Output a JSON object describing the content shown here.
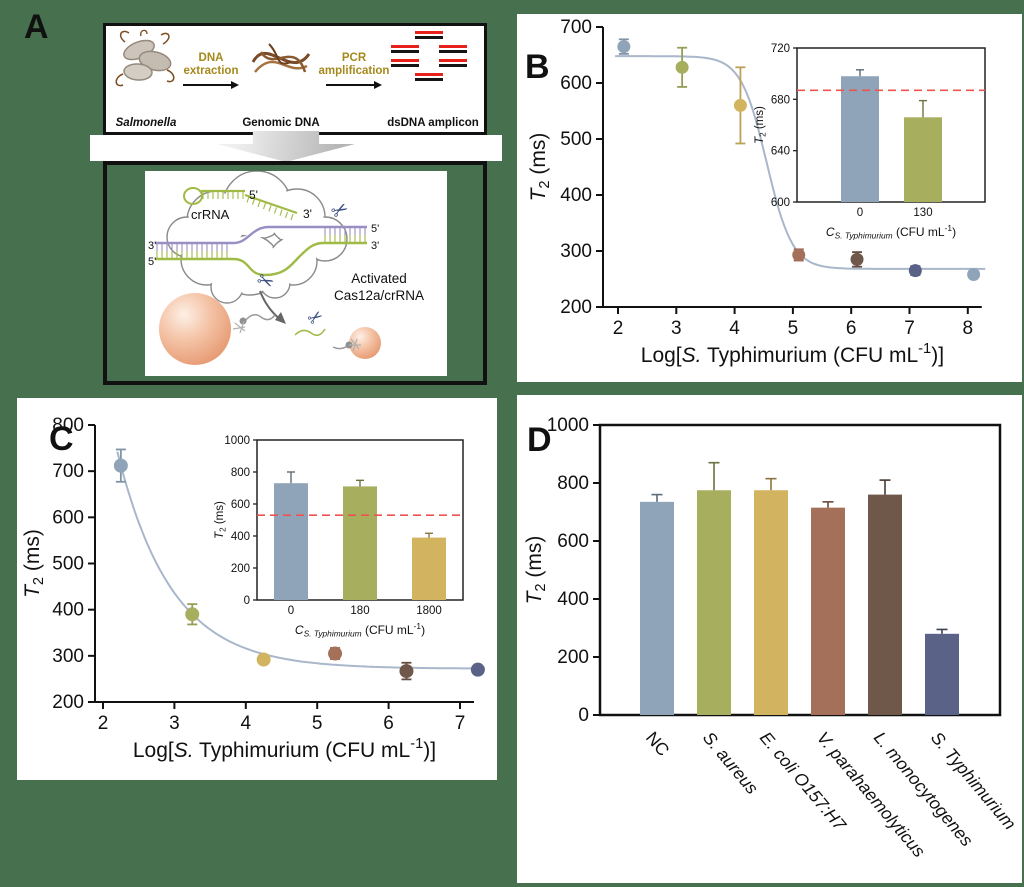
{
  "colors": {
    "canvas_green": "#47714e",
    "blue_gray": "#8fa4b8",
    "olive": "#a7ae5e",
    "gold": "#d2b35f",
    "brick": "#a4705a",
    "dark_brown": "#6f574a",
    "navy": "#5a6288",
    "curve": "#a9b7cb",
    "ref_red": "#ef5350"
  },
  "icons": {
    "scissors": "✂"
  },
  "panels": {
    "b": "B",
    "c": "C",
    "d": "D"
  },
  "panel_a": {
    "label": "A",
    "flow": {
      "item1_label": "Salmonella",
      "step1_line1": "DNA",
      "step1_line2": "extraction",
      "item2_label": "Genomic DNA",
      "step2_line1": "PCR",
      "step2_line2": "amplification",
      "item3_label": "dsDNA amplicon"
    },
    "mechanism": {
      "crRNA_label": "crRNA",
      "activated_line1": "Activated",
      "activated_line2": "Cas12a/crRNA",
      "ends": {
        "top5": "5'",
        "top3": "3'",
        "left3": "3'",
        "left5": "5'",
        "right5": "5'",
        "right3": "3'"
      }
    }
  },
  "chart_data": [
    {
      "id": "B",
      "type": "scatter",
      "panel_label": "B",
      "xlabel_parts": [
        [
          "Log[",
          ""
        ],
        [
          "S.",
          "i"
        ],
        [
          " Typhimurium (CFU mL",
          ""
        ],
        [
          "-1",
          "sup"
        ],
        [
          ")]",
          ""
        ]
      ],
      "ylabel_parts": [
        [
          "T",
          "i"
        ],
        [
          "2",
          "sub"
        ],
        [
          " (ms)",
          ""
        ]
      ],
      "xticks": [
        2,
        3,
        4,
        5,
        6,
        7,
        8
      ],
      "yticks": [
        200,
        300,
        400,
        500,
        600,
        700
      ],
      "ylim": [
        200,
        700
      ],
      "points": [
        {
          "x": 2.1,
          "y": 665,
          "err": 13,
          "color": "blue_gray"
        },
        {
          "x": 3.1,
          "y": 628,
          "err": 35,
          "color": "olive"
        },
        {
          "x": 4.1,
          "y": 560,
          "err": 68,
          "color": "gold"
        },
        {
          "x": 5.1,
          "y": 293,
          "err": 10,
          "color": "brick"
        },
        {
          "x": 6.1,
          "y": 285,
          "err": 13,
          "color": "dark_brown"
        },
        {
          "x": 7.1,
          "y": 265,
          "err": 8,
          "color": "navy"
        },
        {
          "x": 8.1,
          "y": 258,
          "err": 6,
          "color": "blue_gray"
        }
      ],
      "curve": {
        "kind": "sigmoid",
        "base": 268,
        "amp": 380,
        "x0": 4.55,
        "k": 0.22,
        "start": 1.95,
        "end": 8.3
      },
      "inset": {
        "type": "bar",
        "categories": [
          "0",
          "130"
        ],
        "values": [
          698,
          666
        ],
        "errors": [
          5,
          13
        ],
        "bar_colors": [
          "blue_gray",
          "olive"
        ],
        "yticks": [
          600,
          640,
          680,
          720
        ],
        "ylim": [
          600,
          720
        ],
        "refline": 687,
        "xlabel_parts": [
          [
            "C",
            "i"
          ],
          [
            "S. Typhimurium",
            "isub"
          ],
          [
            " (CFU mL",
            ""
          ],
          [
            "-1",
            "sup"
          ],
          [
            ")",
            ""
          ]
        ],
        "ylabel_parts": [
          [
            "T",
            "i"
          ],
          [
            "2",
            "sub"
          ],
          [
            " (ms)",
            ""
          ]
        ]
      }
    },
    {
      "id": "C",
      "type": "scatter",
      "panel_label": "C",
      "xlabel_parts": [
        [
          "Log[",
          ""
        ],
        [
          "S.",
          "i"
        ],
        [
          " Typhimurium (CFU mL",
          ""
        ],
        [
          "-1",
          "sup"
        ],
        [
          ")]",
          ""
        ]
      ],
      "ylabel_parts": [
        [
          "T",
          "i"
        ],
        [
          "2",
          "sub"
        ],
        [
          " (ms)",
          ""
        ]
      ],
      "xticks": [
        2,
        3,
        4,
        5,
        6,
        7
      ],
      "yticks": [
        200,
        300,
        400,
        500,
        600,
        700,
        800
      ],
      "ylim": [
        200,
        800
      ],
      "points": [
        {
          "x": 2.25,
          "y": 712,
          "err": 35,
          "color": "blue_gray"
        },
        {
          "x": 3.25,
          "y": 390,
          "err": 22,
          "color": "olive"
        },
        {
          "x": 4.25,
          "y": 292,
          "err": 8,
          "color": "gold"
        },
        {
          "x": 5.25,
          "y": 305,
          "err": 12,
          "color": "brick"
        },
        {
          "x": 6.25,
          "y": 267,
          "err": 18,
          "color": "dark_brown"
        },
        {
          "x": 7.25,
          "y": 270,
          "err": 8,
          "color": "navy"
        }
      ],
      "curve": {
        "kind": "exp",
        "base": 272,
        "amp": 612,
        "tau": 0.76,
        "start": 2.2,
        "end": 7.35
      },
      "inset": {
        "type": "bar",
        "categories": [
          "0",
          "180",
          "1800"
        ],
        "values": [
          730,
          710,
          390
        ],
        "errors": [
          70,
          38,
          27
        ],
        "bar_colors": [
          "blue_gray",
          "olive",
          "gold"
        ],
        "yticks": [
          0,
          200,
          400,
          600,
          800,
          1000
        ],
        "ylim": [
          0,
          1000
        ],
        "refline": 530,
        "xlabel_parts": [
          [
            "C",
            "i"
          ],
          [
            "S. Typhimurium",
            "isub"
          ],
          [
            " (CFU mL",
            ""
          ],
          [
            "-1",
            "sup"
          ],
          [
            ")",
            ""
          ]
        ],
        "ylabel_parts": [
          [
            "T",
            "i"
          ],
          [
            "2",
            "sub"
          ],
          [
            " (ms)",
            ""
          ]
        ]
      }
    },
    {
      "id": "D",
      "type": "bar",
      "panel_label": "D",
      "ylabel_parts": [
        [
          "T",
          "i"
        ],
        [
          "2",
          "sub"
        ],
        [
          " (ms)",
          ""
        ]
      ],
      "yticks": [
        0,
        200,
        400,
        600,
        800,
        1000
      ],
      "ylim": [
        0,
        1000
      ],
      "categories": [
        {
          "label": "NC",
          "italic": false
        },
        {
          "label": "S. aureus",
          "italic": true
        },
        {
          "label": "E. coli O157:H7",
          "italic": true
        },
        {
          "label": "V. parahaemolyticus",
          "italic": true
        },
        {
          "label": "L. monocytogenes",
          "italic": true
        },
        {
          "label": "S. Typhimurium",
          "italic": true
        }
      ],
      "values": [
        735,
        775,
        775,
        715,
        760,
        280
      ],
      "errors": [
        25,
        95,
        40,
        20,
        50,
        15
      ],
      "bar_colors": [
        "blue_gray",
        "olive",
        "gold",
        "brick",
        "dark_brown",
        "navy"
      ]
    }
  ]
}
